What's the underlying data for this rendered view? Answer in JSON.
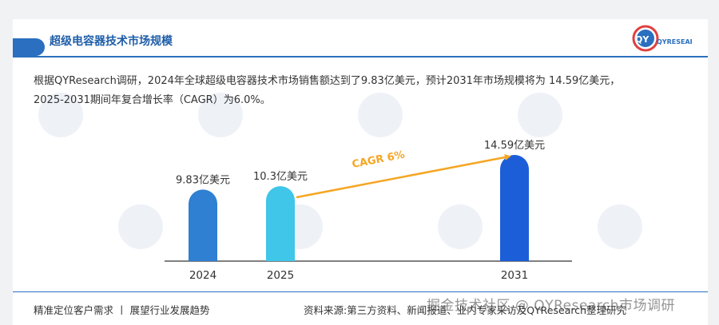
{
  "header": {
    "title": "超级电容器技术市场规模",
    "logo_text": "QYRESEARCH",
    "accent_color": "#2a6fc0"
  },
  "summary": {
    "line1": "根据QYResearch调研，2024年全球超级电容器技术市场销售额达到了9.83亿美元，预计2031年市场规模将为 14.59亿美元，",
    "line2": "2025-2031期间年复合增长率（CAGR）为6.0%。"
  },
  "chart_data": {
    "type": "bar",
    "categories": [
      "2024",
      "2025",
      "2031"
    ],
    "values": [
      9.83,
      10.3,
      14.59
    ],
    "data_labels": [
      "9.83亿美元",
      "10.3亿美元",
      "14.59亿美元"
    ],
    "bar_colors": [
      "#2f7fd3",
      "#3fc6e8",
      "#1b5ed8"
    ],
    "annotation": "CAGR 6%",
    "annotation_color": "#f5a623",
    "title": "",
    "xlabel": "",
    "ylabel": ""
  },
  "footer": {
    "left": "精准定位客户需求 丨 展望行业发展趋势",
    "right": "资料来源:第三方资料、新闻报道、业内专家采访及QYResearch整理研究",
    "overlay_watermark": "掘金技术社区 @ QYResearch市场调研"
  }
}
